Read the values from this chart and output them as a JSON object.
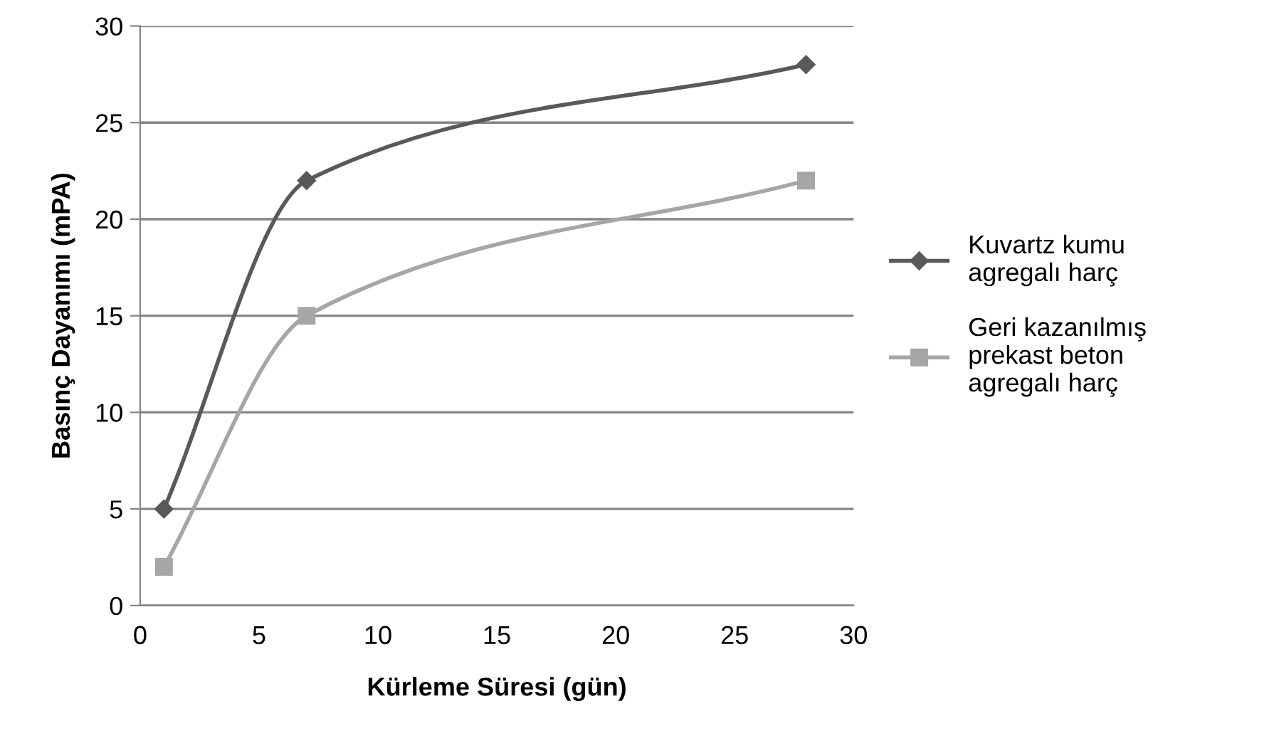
{
  "chart_data": {
    "type": "line",
    "xlabel": "Kürleme Süresi (gün)",
    "ylabel": "Basınç Dayanımı (mPA)",
    "xlim": [
      0,
      30
    ],
    "xticks": [
      0,
      5,
      10,
      15,
      20,
      25,
      30
    ],
    "ylim": [
      0,
      30
    ],
    "yticks": [
      0,
      5,
      10,
      15,
      20,
      25,
      30
    ],
    "grid": "y",
    "legend": "right",
    "line_style": "solid",
    "series": [
      {
        "name": "Kuvartz kumu\nagregalı harç",
        "color": "#595959",
        "marker": "diamond",
        "x": [
          1,
          7,
          28
        ],
        "values": [
          5,
          22,
          28
        ]
      },
      {
        "name": "Geri kazanılmış\nprekast beton\nagregalı harç",
        "color": "#a6a6a6",
        "marker": "square",
        "x": [
          1,
          7,
          28
        ],
        "values": [
          2,
          15,
          22
        ]
      }
    ]
  }
}
